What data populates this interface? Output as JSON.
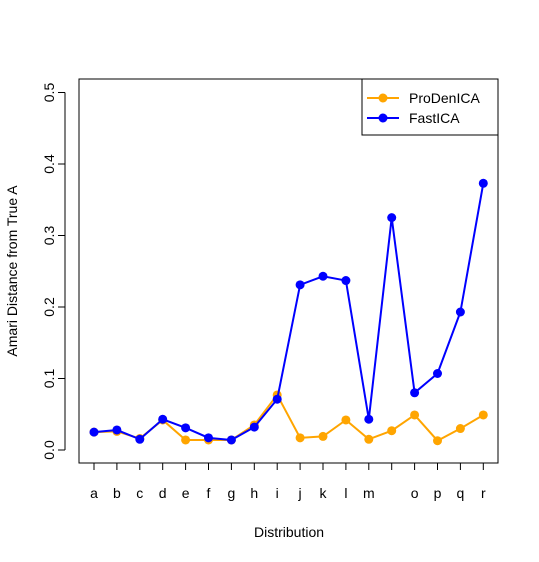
{
  "chart_data": {
    "type": "line",
    "title": "",
    "xlabel": "Distribution",
    "ylabel": "Amari Distance from True A",
    "categories": [
      "a",
      "b",
      "c",
      "d",
      "e",
      "f",
      "g",
      "h",
      "i",
      "j",
      "k",
      "l",
      "m",
      "n",
      "o",
      "p",
      "q",
      "r"
    ],
    "x_tick_labels": [
      "a",
      "b",
      "c",
      "d",
      "e",
      "f",
      "g",
      "h",
      "i",
      "j",
      "k",
      "l",
      "m",
      "",
      "o",
      "p",
      "q",
      "r"
    ],
    "ylim": [
      0,
      0.5
    ],
    "y_ticks": [
      "0.0",
      "0.1",
      "0.2",
      "0.3",
      "0.4",
      "0.5"
    ],
    "y_tick_values": [
      0,
      0.1,
      0.2,
      0.3,
      0.4,
      0.5
    ],
    "grid": false,
    "legend_position": "top-right",
    "series": [
      {
        "name": "ProDenICA",
        "color": "#FFA500",
        "values": [
          0.025,
          0.026,
          0.016,
          0.042,
          0.014,
          0.014,
          0.014,
          0.035,
          0.077,
          0.017,
          0.019,
          0.042,
          0.015,
          0.027,
          0.049,
          0.013,
          0.03,
          0.049
        ]
      },
      {
        "name": "FastICA",
        "color": "#0000FF",
        "values": [
          0.025,
          0.028,
          0.015,
          0.043,
          0.031,
          0.017,
          0.014,
          0.032,
          0.071,
          0.231,
          0.243,
          0.237,
          0.043,
          0.325,
          0.08,
          0.107,
          0.193,
          0.373
        ]
      }
    ]
  }
}
